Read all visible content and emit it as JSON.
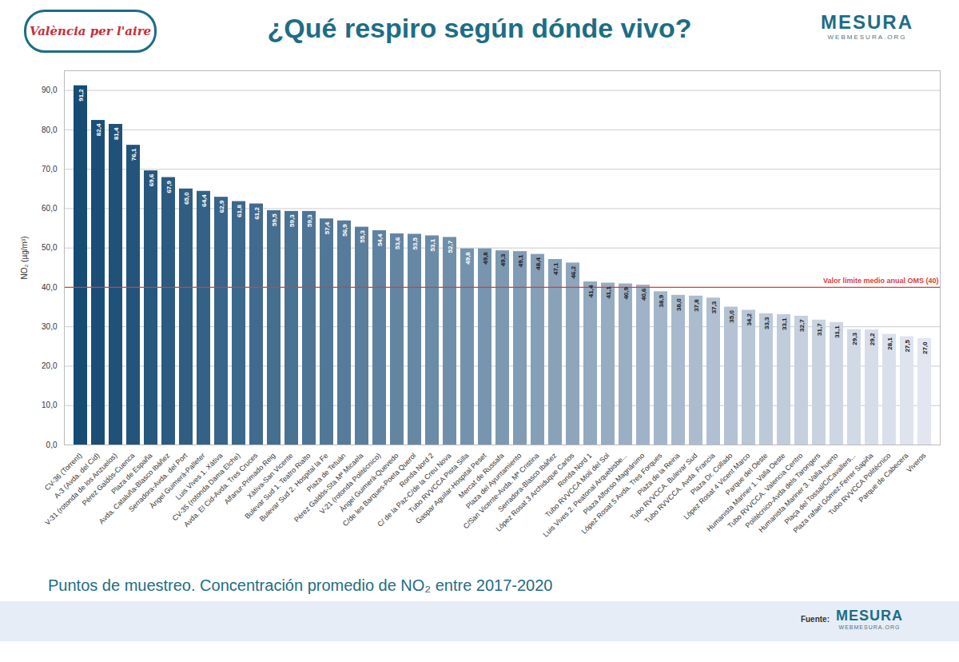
{
  "chart_data": {
    "type": "bar",
    "title": "¿Qué respiro según dónde vivo?",
    "subtitle": "Puntos de muestreo. Concentración promedio de NO₂ entre 2017-2020",
    "y_label": "NO₂ (µg/m³)",
    "logo_left": "València per l'aire",
    "logo_right": "MESURA",
    "logo_right_sub": "WEBMESURA.ORG",
    "source_label": "Fuente:",
    "source": "MESURA",
    "source_sub": "WEBMESURA.ORG",
    "reference_line": {
      "value": 40,
      "label": "Valor límite medio anual OMS (40)",
      "color": "#e03a3a"
    },
    "categories": [
      "CV-36 (Torrent)",
      "A-3 (Avda. del Cid)",
      "V-31 (rotonda de los Anzuelos)",
      "Pérez Galdós-Cuenca",
      "Plaza de España",
      "Avda. Cataluña-Blasco Ibáñez",
      "Serradora-Avda. del Port",
      "Àngel Guimerà-Palleter",
      "Luis Vives 1. Xàtiva",
      "CV-35 (rotonda Dama Elche)",
      "Avda. El Cid-Avda. Tres Cruces",
      "Alfanur-Primado Reig",
      "Xàtiva-San Vicente",
      "Bulevar Sud 1. Teatro Rialto",
      "Bulevar Sud 2. Hospital la Fe",
      "Plaza de Tetuán",
      "Pérez Galdós-Sta Mª Micaela",
      "V-21 (rotonda Politécnico)",
      "Àngel Guimerà-Quevedo",
      "C/de les Barques-Poeta Querol",
      "Ronda Nord 2",
      "C/ de la Paz-C/de la Creu Nova",
      "Tubo RVVCCA Pista Silla",
      "Gaspar Aguilar-Hospital Peset",
      "Mercat de Russafa",
      "Plaza del Ayuntamiento",
      "C/San Vicente-Avda. Mª Cristina",
      "Serradora-Blasco Ibáñez",
      "López Rosat 3 Archiduque Carlos",
      "Ronda Nord 1",
      "Tubo RVVCCA Molí del Sol",
      "Luis Vives 2. Peatonal Arquebisbe...",
      "Plaza Alfonso Magnánimo",
      "López Rosat 5 Avda. Tres Forques",
      "Plaza de la Reina",
      "Tubo RVVCCA. Bulevar Sud",
      "Tubo RVVCCA. Avda. Francia",
      "Plaza Dr. Collado",
      "López Rosat 4 Vicent Marco",
      "Parque del Oeste",
      "Humanista Mariner 1. Valla Oeste",
      "Tubo RVVCCA. Valencia Centro",
      "Politécnico-Avda dels Tarongers",
      "Humanista Mariner 3. Valla huerto",
      "Plaça del Tossal/C/Cavallers...",
      "Plaza rafael Gómez-Ferrer Sapiña",
      "Tubo RVVCCA Politécnico",
      "Parque de Cabecera",
      "Viveros"
    ],
    "values": [
      91.2,
      82.4,
      81.4,
      76.1,
      69.6,
      67.9,
      65.0,
      64.4,
      62.9,
      61.8,
      61.2,
      59.5,
      59.3,
      59.3,
      57.4,
      56.9,
      55.3,
      54.4,
      53.6,
      53.5,
      53.1,
      52.7,
      49.8,
      49.8,
      49.3,
      49.1,
      48.4,
      47.1,
      46.2,
      41.4,
      41.1,
      40.9,
      40.6,
      38.9,
      38.0,
      37.8,
      37.3,
      35.0,
      34.2,
      33.3,
      33.1,
      32.7,
      31.7,
      31.1,
      29.3,
      29.2,
      28.1,
      27.5,
      27.0
    ],
    "value_labels": [
      "91,2",
      "82,4",
      "81,4",
      "76,1",
      "69,6",
      "67,9",
      "65,0",
      "64,4",
      "62,9",
      "61,8",
      "61,2",
      "59,5",
      "59,3",
      "59,3",
      "57,4",
      "56,9",
      "55,3",
      "54,4",
      "53,6",
      "53,5",
      "53,1",
      "52,7",
      "49,8",
      "49,8",
      "49,3",
      "49,1",
      "48,4",
      "47,1",
      "46,2",
      "41,4",
      "41,1",
      "40,9",
      "40,6",
      "38,9",
      "38,0",
      "37,8",
      "37,3",
      "35,0",
      "34,2",
      "33,3",
      "33,1",
      "32,7",
      "31,7",
      "31,1",
      "29,3",
      "29,2",
      "28,1",
      "27,5",
      "27,0"
    ],
    "colors": [
      "#164b74",
      "#1a4e77",
      "#1f5179",
      "#23557c",
      "#27587e",
      "#2b5b81",
      "#305e83",
      "#346286",
      "#386589",
      "#3c688b",
      "#416b8e",
      "#456f90",
      "#497293",
      "#4e7596",
      "#527898",
      "#567b9b",
      "#5a7f9d",
      "#5f82a0",
      "#6385a2",
      "#6788a5",
      "#6b8ca8",
      "#708faa",
      "#7492ad",
      "#7895af",
      "#7c99b2",
      "#819cb5",
      "#859fb7",
      "#89a2ba",
      "#8ea5bc",
      "#92a9bf",
      "#96acc1",
      "#9aafc4",
      "#9fb2c7",
      "#a3b6c9",
      "#a7b9cc",
      "#abbcce",
      "#b0bfd1",
      "#b4c2d4",
      "#b8c6d6",
      "#bcc9d9",
      "#c1ccdb",
      "#c5cfde",
      "#c9d3e0",
      "#ced6e3",
      "#d2d9e6",
      "#d6dce8",
      "#dae0eb",
      "#dfe3ed",
      "#e3e6f0"
    ],
    "ylim": [
      0,
      95
    ],
    "yticks": [
      {
        "value": 0,
        "label": "0,0"
      },
      {
        "value": 10,
        "label": "10,0"
      },
      {
        "value": 20,
        "label": "20,0"
      },
      {
        "value": 30,
        "label": "30,0"
      },
      {
        "value": 40,
        "label": "40,0"
      },
      {
        "value": 50,
        "label": "50,0"
      },
      {
        "value": 60,
        "label": "60,0"
      },
      {
        "value": 70,
        "label": "70,0"
      },
      {
        "value": 80,
        "label": "80,0"
      },
      {
        "value": 90,
        "label": "90,0"
      }
    ],
    "grid": true,
    "data_labels": true
  }
}
